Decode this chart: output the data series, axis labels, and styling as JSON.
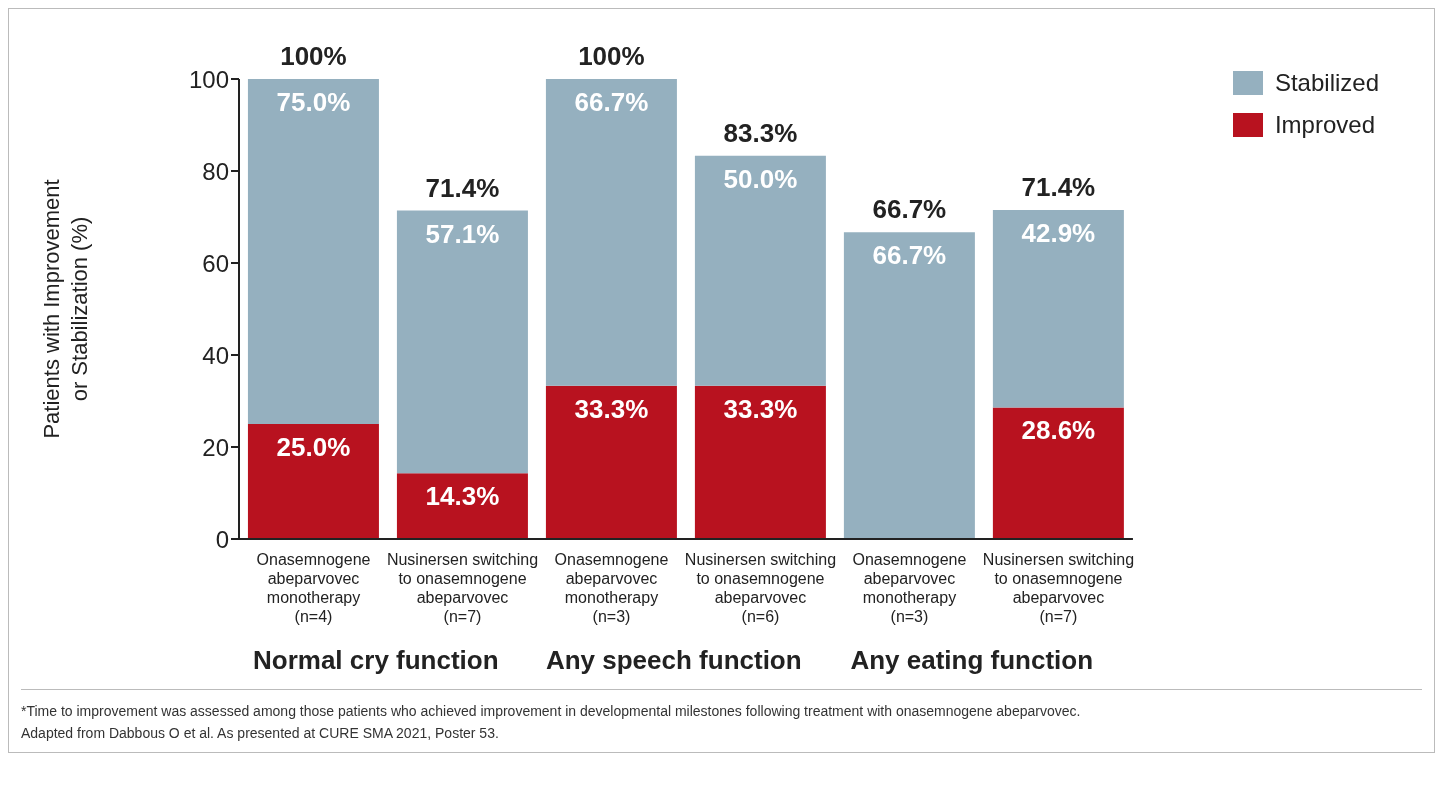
{
  "chart_data": {
    "type": "bar",
    "stacked": true,
    "ylabel": "Patients with Improvement\nor Stabilization (%)",
    "categories": [
      "Onasemnogene\nabeparvovec\nmonotherapy\n(n=4)",
      "Nusinersen switching\nto onasemnogene\nabeparvovec\n(n=7)",
      "Onasemnogene\nabeparvovec\nmonotherapy\n(n=3)",
      "Nusinersen switching\nto onasemnogene\nabeparvovec\n(n=6)",
      "Onasemnogene\nabeparvovec\nmonotherapy\n(n=3)",
      "Nusinersen switching\nto onasemnogene\nabeparvovec\n(n=7)"
    ],
    "series": [
      {
        "name": "Improved",
        "color": "#b8121f",
        "values": [
          25.0,
          14.3,
          33.3,
          33.3,
          0,
          28.6
        ],
        "value_labels": [
          "25.0%",
          "14.3%",
          "33.3%",
          "33.3%",
          null,
          "28.6%"
        ]
      },
      {
        "name": "Stabilized",
        "color": "#95b0bf",
        "values": [
          75.0,
          57.1,
          66.7,
          50.0,
          66.7,
          42.9
        ],
        "value_labels": [
          "75.0%",
          "57.1%",
          "66.7%",
          "50.0%",
          "66.7%",
          "42.9%"
        ]
      }
    ],
    "totals": [
      "100%",
      "71.4%",
      "100%",
      "83.3%",
      "66.7%",
      "71.4%"
    ],
    "ylim": [
      0,
      100
    ],
    "yticks": [
      0,
      20,
      40,
      60,
      80,
      100
    ],
    "grid": false,
    "legend": "top right",
    "annotations": [
      "Normal cry function",
      "Any speech function",
      "Any eating function",
      "*Time to improvement was assessed among those patients who achieved improvement in developmental milestones following treatment with onasemnogene abeparvovec.",
      "Adapted from Dabbous O et al. As presented at CURE SMA 2021, Poster 53."
    ]
  }
}
